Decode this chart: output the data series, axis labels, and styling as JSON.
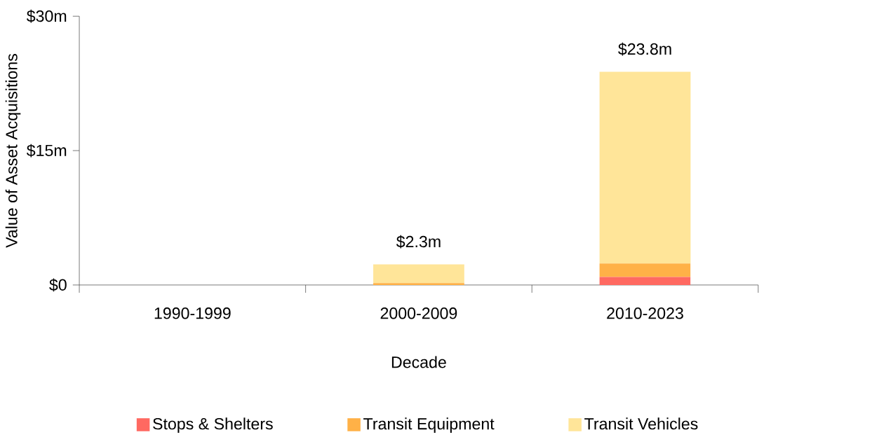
{
  "chart_data": {
    "type": "bar",
    "stacked": true,
    "xlabel": "Decade",
    "ylabel": "Value of Asset Acquisitions",
    "categories": [
      "1990-1999",
      "2000-2009",
      "2010-2023"
    ],
    "series": [
      {
        "name": "Stops & Shelters",
        "color": "#ff6961",
        "values": [
          0,
          0,
          0.9
        ]
      },
      {
        "name": "Transit Equipment",
        "color": "#ffb147",
        "values": [
          0,
          0.2,
          1.5
        ]
      },
      {
        "name": "Transit Vehicles",
        "color": "#ffe599",
        "values": [
          0,
          2.1,
          21.4
        ]
      }
    ],
    "totals": [
      null,
      "$2.3m",
      "$23.8m"
    ],
    "ylim": [
      0,
      30
    ],
    "yticks": [
      {
        "value": 0,
        "label": "$0"
      },
      {
        "value": 15,
        "label": "$15m"
      },
      {
        "value": 30,
        "label": "$30m"
      }
    ],
    "grid": false,
    "legend": "bottom"
  }
}
